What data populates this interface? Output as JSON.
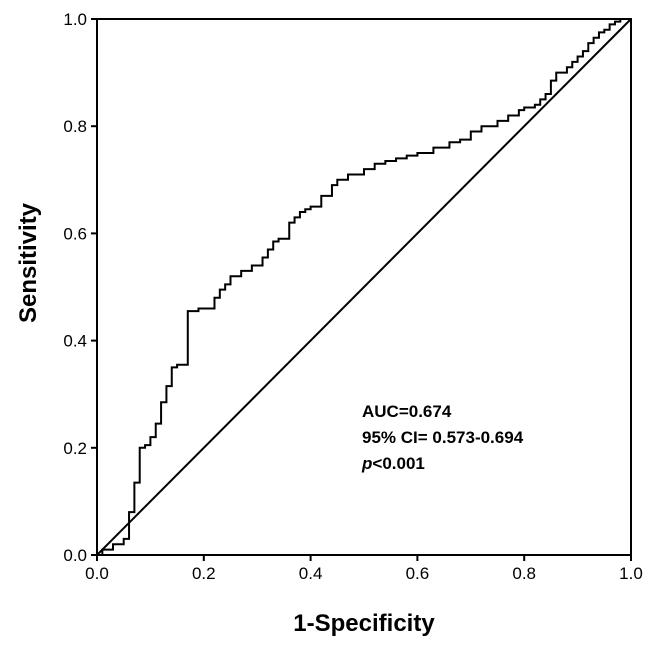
{
  "chart_data": {
    "type": "line",
    "title": "",
    "xlabel": "1-Specificity",
    "ylabel": "Sensitivity",
    "xlim": [
      0.0,
      1.0
    ],
    "ylim": [
      0.0,
      1.0
    ],
    "xticks": [
      "0.0",
      "0.2",
      "0.4",
      "0.6",
      "0.8",
      "1.0"
    ],
    "yticks": [
      "0.0",
      "0.2",
      "0.4",
      "0.6",
      "0.8",
      "1.0"
    ],
    "grid": false,
    "legend": "none",
    "reference_line": {
      "from": [
        0,
        0
      ],
      "to": [
        1,
        1
      ]
    },
    "annotations": {
      "auc": "AUC=0.674",
      "ci": "95% CI= 0.573-0.694",
      "p_italic": "p",
      "p_rest": "<0.001"
    },
    "series": [
      {
        "x": [
          0,
          0.01,
          0.01,
          0.03,
          0.03,
          0.05,
          0.05,
          0.06,
          0.06,
          0.07,
          0.07,
          0.08,
          0.08,
          0.09,
          0.09,
          0.1,
          0.1,
          0.11,
          0.11,
          0.12,
          0.12,
          0.13,
          0.13,
          0.14,
          0.14,
          0.15,
          0.15,
          0.16,
          0.16,
          0.17,
          0.17,
          0.19,
          0.19,
          0.22,
          0.22,
          0.23,
          0.23,
          0.24,
          0.24,
          0.25,
          0.25,
          0.27,
          0.27,
          0.29,
          0.29,
          0.31,
          0.31,
          0.32,
          0.32,
          0.33,
          0.33,
          0.34,
          0.34,
          0.36,
          0.36,
          0.37,
          0.37,
          0.38,
          0.38,
          0.39,
          0.39,
          0.4,
          0.4,
          0.42,
          0.42,
          0.44,
          0.44,
          0.45,
          0.45,
          0.47,
          0.47,
          0.5,
          0.5,
          0.52,
          0.52,
          0.54,
          0.54,
          0.56,
          0.56,
          0.58,
          0.58,
          0.6,
          0.6,
          0.63,
          0.63,
          0.66,
          0.66,
          0.68,
          0.68,
          0.7,
          0.7,
          0.72,
          0.72,
          0.75,
          0.75,
          0.77,
          0.77,
          0.79,
          0.79,
          0.8,
          0.8,
          0.82,
          0.82,
          0.83,
          0.83,
          0.84,
          0.84,
          0.85,
          0.85,
          0.86,
          0.86,
          0.88,
          0.88,
          0.89,
          0.89,
          0.9,
          0.9,
          0.91,
          0.91,
          0.92,
          0.92,
          0.93,
          0.93,
          0.94,
          0.94,
          0.95,
          0.95,
          0.96,
          0.96,
          0.97,
          0.97,
          0.98,
          0.98,
          1.0
        ],
        "y": [
          0,
          0,
          0.01,
          0.01,
          0.02,
          0.02,
          0.03,
          0.03,
          0.08,
          0.08,
          0.135,
          0.135,
          0.2,
          0.2,
          0.205,
          0.205,
          0.22,
          0.22,
          0.245,
          0.245,
          0.285,
          0.285,
          0.315,
          0.315,
          0.35,
          0.35,
          0.355,
          0.355,
          0.355,
          0.355,
          0.455,
          0.455,
          0.46,
          0.46,
          0.48,
          0.48,
          0.495,
          0.495,
          0.505,
          0.505,
          0.52,
          0.52,
          0.53,
          0.53,
          0.54,
          0.54,
          0.555,
          0.555,
          0.57,
          0.57,
          0.585,
          0.585,
          0.59,
          0.59,
          0.62,
          0.62,
          0.63,
          0.63,
          0.64,
          0.64,
          0.645,
          0.645,
          0.65,
          0.65,
          0.67,
          0.67,
          0.69,
          0.69,
          0.7,
          0.7,
          0.71,
          0.71,
          0.72,
          0.72,
          0.73,
          0.73,
          0.735,
          0.735,
          0.74,
          0.74,
          0.745,
          0.745,
          0.75,
          0.75,
          0.76,
          0.76,
          0.77,
          0.77,
          0.775,
          0.775,
          0.79,
          0.79,
          0.8,
          0.8,
          0.81,
          0.81,
          0.82,
          0.82,
          0.83,
          0.83,
          0.835,
          0.835,
          0.84,
          0.84,
          0.85,
          0.85,
          0.86,
          0.86,
          0.885,
          0.885,
          0.9,
          0.9,
          0.91,
          0.91,
          0.92,
          0.92,
          0.93,
          0.93,
          0.94,
          0.94,
          0.955,
          0.955,
          0.965,
          0.965,
          0.975,
          0.975,
          0.98,
          0.98,
          0.99,
          0.99,
          0.995,
          0.995,
          1.0,
          1.0
        ]
      }
    ]
  }
}
